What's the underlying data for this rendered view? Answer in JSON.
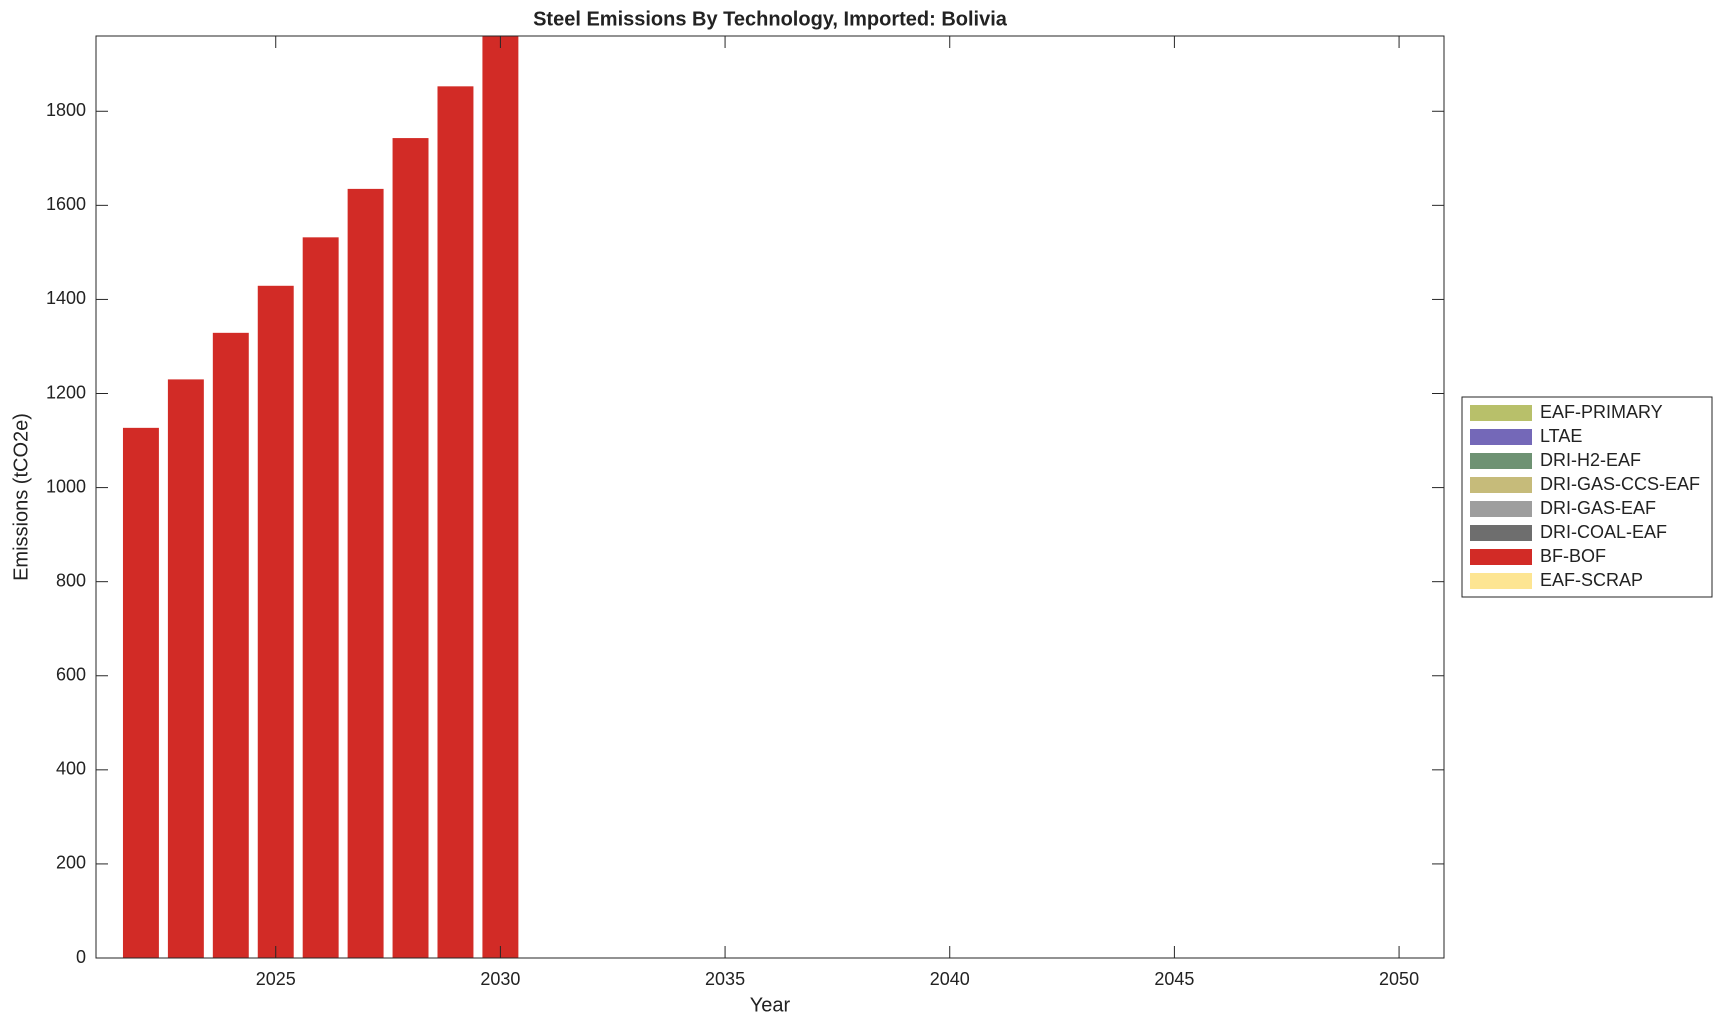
{
  "chart_data": {
    "type": "stacked-bar",
    "title": "Steel Emissions By Technology, Imported: Bolivia",
    "x_label": "Year",
    "y_label": "Emissions (tCO2e)",
    "x": [
      2022,
      2023,
      2024,
      2025,
      2026,
      2027,
      2028,
      2029,
      2030
    ],
    "series": [
      {
        "name": "EAF-PRIMARY",
        "color": "#b8c06a",
        "values": [
          0,
          0,
          0,
          0,
          0,
          0,
          0,
          0,
          0
        ]
      },
      {
        "name": "LTAE",
        "color": "#7468b8",
        "values": [
          0,
          0,
          0,
          0,
          0,
          0,
          0,
          0,
          0
        ]
      },
      {
        "name": "DRI-H2-EAF",
        "color": "#6e9273",
        "values": [
          0,
          0,
          0,
          0,
          0,
          0,
          0,
          0,
          0
        ]
      },
      {
        "name": "DRI-GAS-CCS-EAF",
        "color": "#c6bb7a",
        "values": [
          0,
          0,
          0,
          0,
          0,
          0,
          0,
          0,
          0
        ]
      },
      {
        "name": "DRI-GAS-EAF",
        "color": "#9e9e9e",
        "values": [
          0,
          0,
          0,
          0,
          0,
          0,
          0,
          0,
          0
        ]
      },
      {
        "name": "DRI-COAL-EAF",
        "color": "#6e6e6e",
        "values": [
          0,
          0,
          0,
          0,
          0,
          0,
          0,
          0,
          0
        ]
      },
      {
        "name": "BF-BOF",
        "color": "#d22b26",
        "values": [
          1127,
          1230,
          1329,
          1429,
          1532,
          1635,
          1743,
          1853,
          1960
        ]
      },
      {
        "name": "EAF-SCRAP",
        "color": "#fde592",
        "values": [
          0,
          0,
          0,
          0,
          0,
          0,
          0,
          0,
          0
        ]
      }
    ],
    "xlim": [
      2021,
      2051
    ],
    "xticks": [
      2025,
      2030,
      2035,
      2040,
      2045,
      2050
    ],
    "ylim": [
      0,
      1960
    ],
    "yticks": [
      0,
      200,
      400,
      600,
      800,
      1000,
      1200,
      1400,
      1600,
      1800
    ],
    "legend": "right"
  }
}
